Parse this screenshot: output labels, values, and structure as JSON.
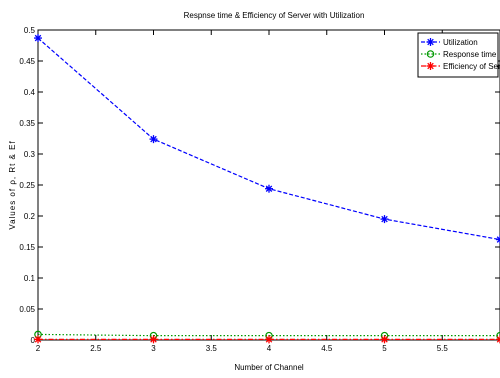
{
  "chart_data": {
    "type": "line",
    "title": "Respnse time & Efficiency of Server with Utilization",
    "xlabel": "Number of Channel",
    "ylabel": "Values of ρ, Rt & Ef",
    "xlim": [
      2,
      6
    ],
    "ylim": [
      0,
      0.5
    ],
    "xticks": [
      "2",
      "2.5",
      "3",
      "3.5",
      "4",
      "4.5",
      "5",
      "5.5"
    ],
    "yticks": [
      "0",
      "0.05",
      "0.1",
      "0.15",
      "0.2",
      "0.25",
      "0.3",
      "0.35",
      "0.4",
      "0.45",
      "0.5"
    ],
    "grid": false,
    "legend_position": "top-right",
    "series": [
      {
        "name": "Utilization",
        "color": "#0000ff",
        "marker": "star",
        "line_style": "dashed",
        "x": [
          2,
          3,
          4,
          5,
          6
        ],
        "y": [
          0.487,
          0.324,
          0.244,
          0.195,
          0.162
        ]
      },
      {
        "name": "Response time",
        "color": "#009900",
        "marker": "circle",
        "line_style": "dotted",
        "x": [
          2,
          3,
          4,
          5,
          6
        ],
        "y": [
          0.009,
          0.007,
          0.007,
          0.007,
          0.007
        ]
      },
      {
        "name": "Efficiency of Server",
        "color": "#ff0000",
        "marker": "star",
        "line_style": "dash-dot",
        "x": [
          2,
          3,
          4,
          5,
          6
        ],
        "y": [
          0.001,
          0.001,
          0.001,
          0.001,
          0.001
        ]
      }
    ]
  }
}
